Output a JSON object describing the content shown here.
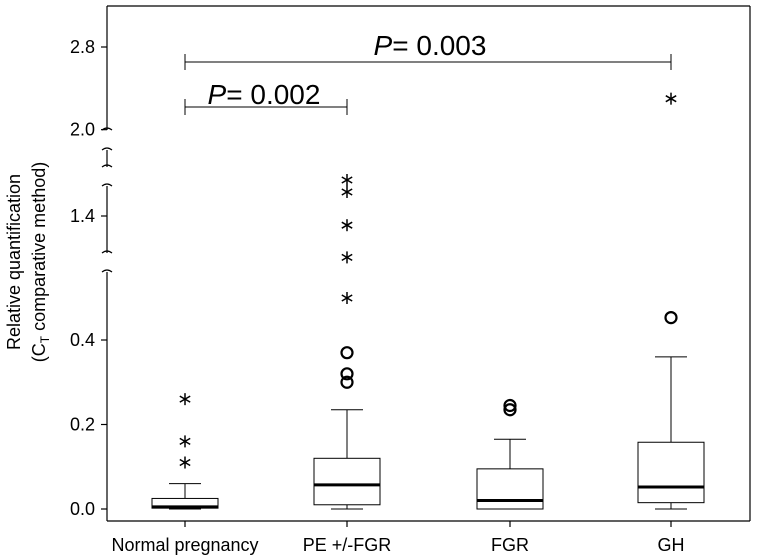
{
  "chart_data": {
    "type": "box",
    "title": "",
    "ylabel_line1": "Relative quantification",
    "ylabel_line2_prefix": "(C",
    "ylabel_line2_sub": "T",
    "ylabel_line2_suffix": " comparative method)",
    "xlabel": "",
    "y_ticks": [
      "0.0",
      "0.2",
      "0.4",
      "1.4",
      "2.0",
      "2.8"
    ],
    "y_tick_values": [
      0.0,
      0.2,
      0.4,
      1.4,
      2.0,
      2.8
    ],
    "axis_breaks": "broken y-axis between 0.4 and 1.4, between 1.4 and 2.0, and between 2.0 and 2.8",
    "categories": [
      "Normal pregnancy",
      "PE +/-FGR",
      "FGR",
      "GH"
    ],
    "boxes": [
      {
        "name": "Normal pregnancy",
        "whisker_low": 0.0,
        "q1": 0.002,
        "median": 0.005,
        "q3": 0.025,
        "whisker_high": 0.06,
        "outliers": [],
        "extremes": [
          0.11,
          0.16,
          0.26
        ]
      },
      {
        "name": "PE +/-FGR",
        "whisker_low": 0.0,
        "q1": 0.01,
        "median": 0.057,
        "q3": 0.12,
        "whisker_high": 0.235,
        "outliers": [
          0.3,
          0.32,
          0.37
        ],
        "extremes": [
          0.55,
          0.95,
          1.3,
          1.7,
          1.85
        ]
      },
      {
        "name": "FGR",
        "whisker_low": 0.0,
        "q1": 0.0,
        "median": 0.02,
        "q3": 0.095,
        "whisker_high": 0.165,
        "outliers": [
          0.235,
          0.245
        ],
        "extremes": []
      },
      {
        "name": "GH",
        "whisker_low": 0.0,
        "q1": 0.015,
        "median": 0.052,
        "q3": 0.158,
        "whisker_high": 0.36,
        "outliers": [
          0.48
        ],
        "extremes": [
          2.3
        ]
      }
    ],
    "annotations": [
      {
        "italic": "P",
        "text": "= 0.002",
        "from": "Normal pregnancy",
        "to": "PE +/-FGR"
      },
      {
        "italic": "P",
        "text": "= 0.003",
        "from": "Normal pregnancy",
        "to": "GH"
      }
    ]
  }
}
